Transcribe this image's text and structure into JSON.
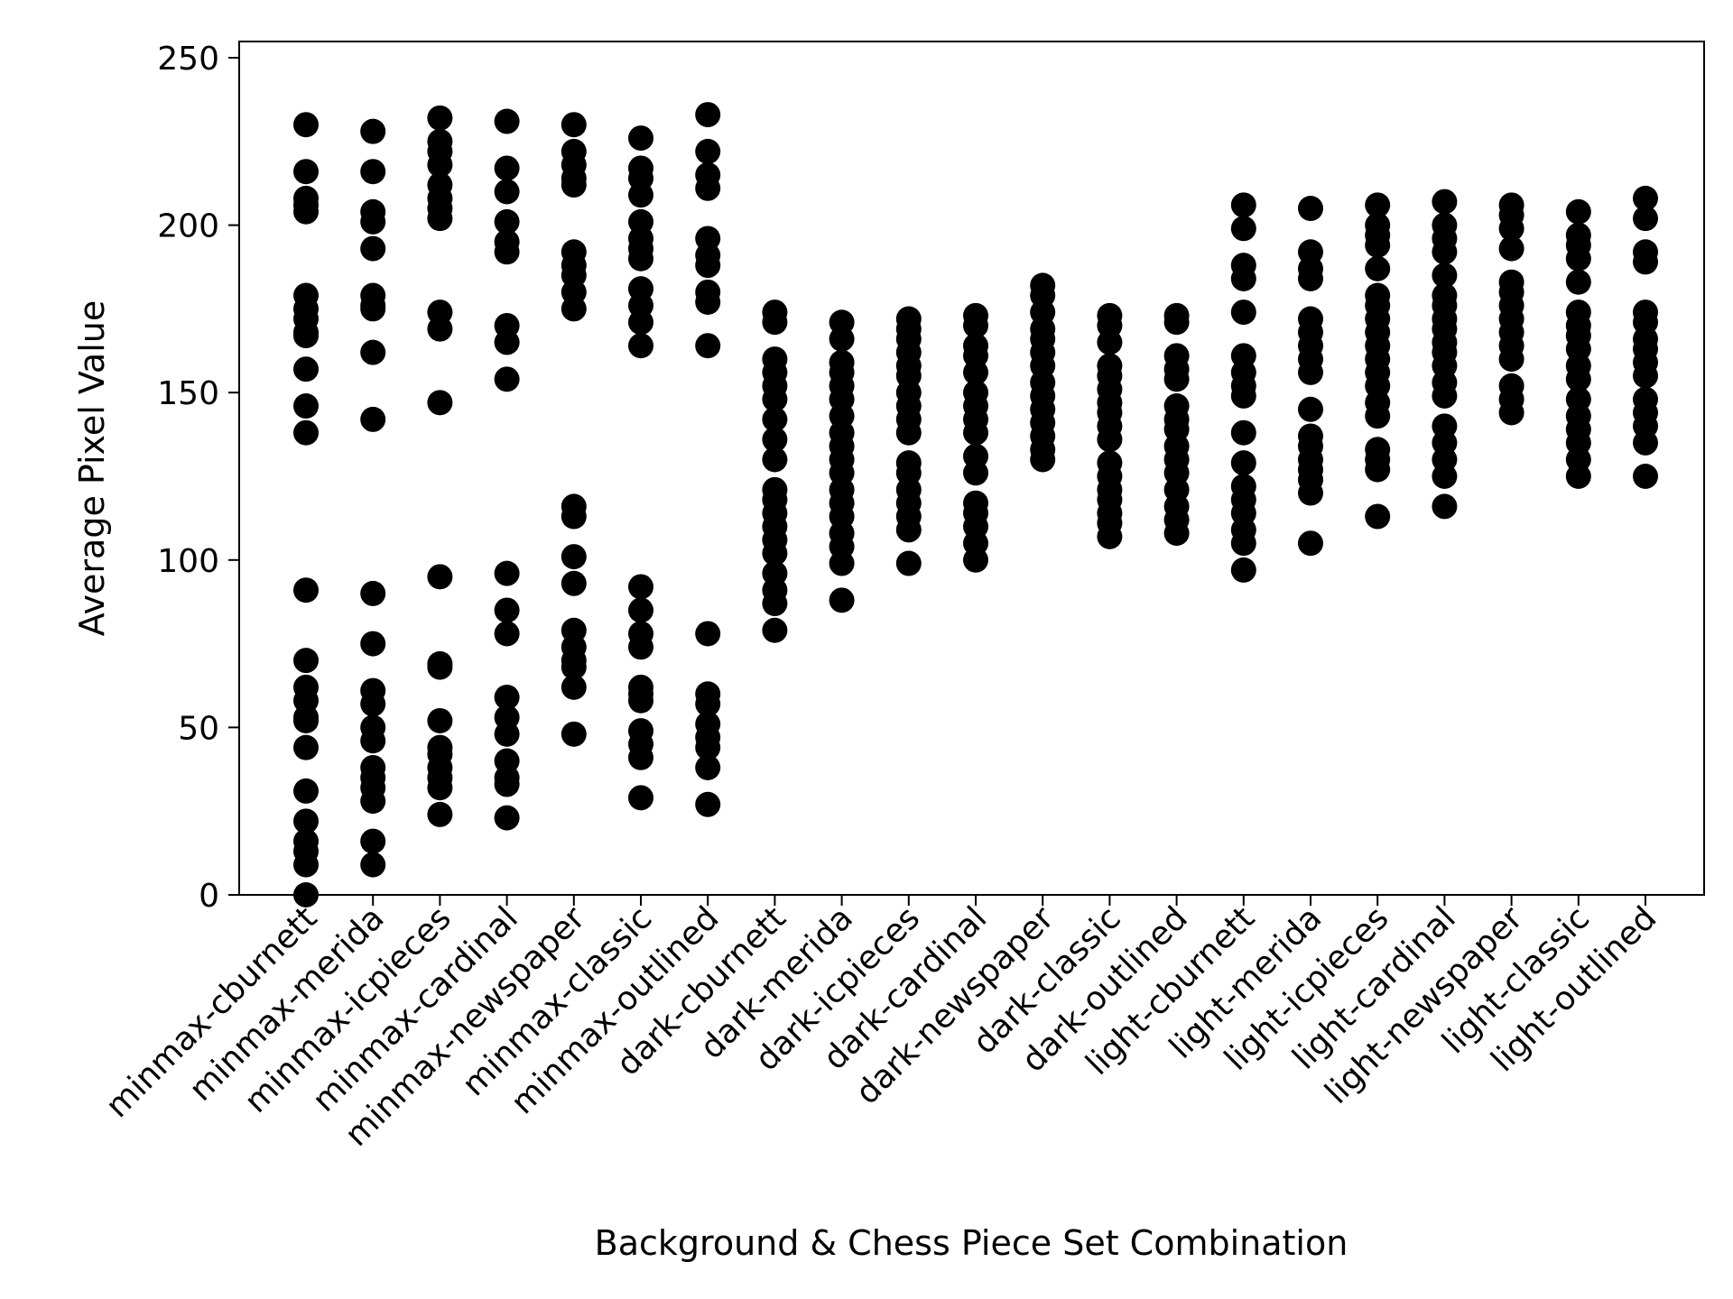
{
  "chart_data": {
    "type": "scatter",
    "title": "",
    "xlabel": "Background & Chess Piece Set Combination",
    "ylabel": "Average Pixel Value",
    "ylim": [
      0,
      255
    ],
    "yticks": [
      0,
      50,
      100,
      150,
      200,
      250
    ],
    "grid": false,
    "legend": "none",
    "marker_color": "#000000",
    "categories": [
      "minmax-cburnett",
      "minmax-merida",
      "minmax-icpieces",
      "minmax-cardinal",
      "minmax-newspaper",
      "minmax-classic",
      "minmax-outlined",
      "dark-cburnett",
      "dark-merida",
      "dark-icpieces",
      "dark-cardinal",
      "dark-newspaper",
      "dark-classic",
      "dark-outlined",
      "light-cburnett",
      "light-merida",
      "light-icpieces",
      "light-cardinal",
      "light-newspaper",
      "light-classic",
      "light-outlined"
    ],
    "values": [
      [
        230,
        216,
        208,
        206,
        204,
        179,
        175,
        172,
        168,
        167,
        157,
        146,
        138,
        91,
        70,
        62,
        58,
        53,
        52,
        44,
        31,
        22,
        16,
        13,
        9,
        0
      ],
      [
        228,
        216,
        204,
        201,
        193,
        179,
        176,
        175,
        162,
        142,
        90,
        75,
        61,
        57,
        50,
        46,
        38,
        35,
        32,
        28,
        16,
        9
      ],
      [
        232,
        225,
        222,
        218,
        212,
        208,
        205,
        202,
        174,
        169,
        147,
        95,
        69,
        68,
        52,
        44,
        42,
        38,
        35,
        32,
        24
      ],
      [
        231,
        217,
        210,
        201,
        195,
        192,
        170,
        165,
        154,
        96,
        85,
        78,
        59,
        53,
        48,
        40,
        35,
        33,
        23
      ],
      [
        230,
        222,
        218,
        214,
        212,
        192,
        188,
        185,
        180,
        175,
        116,
        113,
        101,
        93,
        79,
        74,
        70,
        68,
        62,
        48
      ],
      [
        226,
        217,
        214,
        209,
        201,
        196,
        193,
        190,
        181,
        176,
        171,
        164,
        92,
        85,
        78,
        74,
        62,
        60,
        58,
        49,
        45,
        41,
        29
      ],
      [
        233,
        222,
        215,
        211,
        196,
        191,
        188,
        180,
        177,
        164,
        78,
        60,
        57,
        51,
        47,
        44,
        38,
        27
      ],
      [
        174,
        171,
        160,
        156,
        152,
        148,
        142,
        136,
        130,
        121,
        118,
        114,
        110,
        106,
        102,
        96,
        91,
        87,
        79
      ],
      [
        171,
        166,
        159,
        156,
        152,
        148,
        143,
        138,
        134,
        130,
        126,
        121,
        117,
        113,
        108,
        104,
        99,
        88
      ],
      [
        172,
        169,
        166,
        162,
        158,
        155,
        150,
        146,
        142,
        138,
        129,
        126,
        121,
        117,
        113,
        109,
        99
      ],
      [
        173,
        170,
        164,
        161,
        156,
        150,
        146,
        142,
        138,
        131,
        126,
        117,
        114,
        110,
        105,
        100
      ],
      [
        182,
        179,
        174,
        169,
        166,
        162,
        158,
        153,
        149,
        145,
        141,
        137,
        133,
        130
      ],
      [
        173,
        170,
        165,
        158,
        155,
        151,
        147,
        144,
        140,
        136,
        129,
        125,
        121,
        118,
        114,
        111,
        107
      ],
      [
        173,
        171,
        161,
        157,
        154,
        146,
        142,
        139,
        134,
        130,
        126,
        121,
        116,
        112,
        108
      ],
      [
        206,
        199,
        188,
        184,
        174,
        161,
        156,
        152,
        149,
        138,
        129,
        122,
        118,
        114,
        109,
        105,
        97
      ],
      [
        205,
        192,
        187,
        184,
        172,
        168,
        164,
        160,
        156,
        145,
        137,
        134,
        130,
        127,
        124,
        120,
        105
      ],
      [
        206,
        200,
        197,
        194,
        187,
        179,
        176,
        172,
        168,
        164,
        160,
        156,
        152,
        147,
        143,
        133,
        130,
        127,
        113
      ],
      [
        207,
        200,
        196,
        192,
        185,
        179,
        176,
        172,
        169,
        165,
        162,
        158,
        153,
        149,
        140,
        135,
        130,
        125,
        116
      ],
      [
        206,
        203,
        199,
        193,
        183,
        180,
        176,
        172,
        168,
        164,
        160,
        152,
        148,
        144
      ],
      [
        204,
        197,
        194,
        190,
        183,
        174,
        170,
        167,
        163,
        158,
        154,
        148,
        143,
        139,
        135,
        130,
        125
      ],
      [
        208,
        202,
        192,
        189,
        174,
        171,
        166,
        163,
        159,
        155,
        148,
        144,
        140,
        135,
        125
      ]
    ]
  }
}
